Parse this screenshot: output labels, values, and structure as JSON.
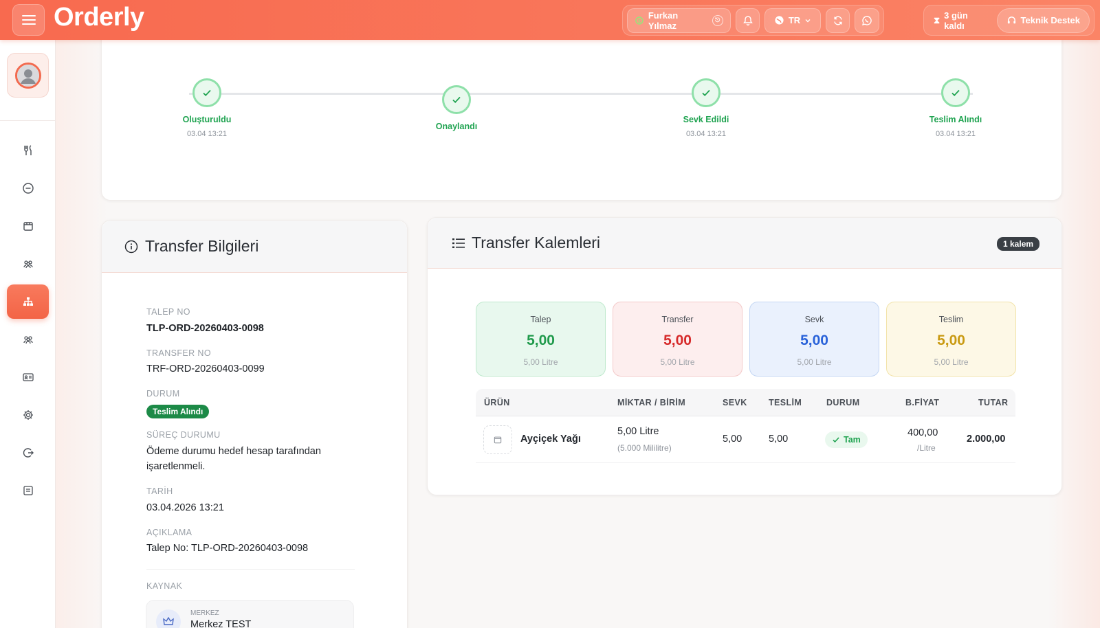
{
  "app": {
    "brand": "Orderly",
    "user_name": "Furkan Yılmaz",
    "language": "TR",
    "days_left": "3 gün kaldı",
    "support_label": "Teknik Destek"
  },
  "timeline": [
    {
      "label": "Oluşturuldu",
      "time": "03.04 13:21"
    },
    {
      "label": "Onaylandı",
      "time": ""
    },
    {
      "label": "Sevk Edildi",
      "time": "03.04 13:21"
    },
    {
      "label": "Teslim Alındı",
      "time": "03.04 13:21"
    }
  ],
  "transfer_info": {
    "title": "Transfer Bilgileri",
    "talep_no_label": "TALEP NO",
    "talep_no": "TLP-ORD-20260403-0098",
    "transfer_no_label": "TRANSFER NO",
    "transfer_no": "TRF-ORD-20260403-0099",
    "durum_label": "DURUM",
    "durum": "Teslim Alındı",
    "surec_label": "SÜREÇ DURUMU",
    "surec_line1": "Ödeme durumu hedef hesap tarafından",
    "surec_line2": "işaretlenmeli.",
    "tarih_label": "TARİH",
    "tarih": "03.04.2026 13:21",
    "aciklama_label": "AÇIKLAMA",
    "aciklama": "Talep No: TLP-ORD-20260403-0098",
    "kaynak_label": "KAYNAK",
    "kaynak_type": "MERKEZ",
    "kaynak_name": "Merkez TEST"
  },
  "items": {
    "title": "Transfer Kalemleri",
    "count_badge": "1 kalem",
    "stats": [
      {
        "title": "Talep",
        "value": "5,00",
        "sub": "5,00 Litre",
        "color": "#1f9a4b",
        "bg": "#e8f8ee",
        "border": "#bfe9cd"
      },
      {
        "title": "Transfer",
        "value": "5,00",
        "sub": "5,00 Litre",
        "color": "#d62a2a",
        "bg": "#fdeeee",
        "border": "#f3c9c9"
      },
      {
        "title": "Sevk",
        "value": "5,00",
        "sub": "5,00 Litre",
        "color": "#2962d9",
        "bg": "#eaf1fd",
        "border": "#c3d6f3"
      },
      {
        "title": "Teslim",
        "value": "5,00",
        "sub": "5,00 Litre",
        "color": "#c99a12",
        "bg": "#fdf8e6",
        "border": "#f2e3a9"
      }
    ],
    "columns": {
      "urun": "ÜRÜN",
      "miktar": "MİKTAR / BİRİM",
      "sevk": "SEVK",
      "teslim": "TESLİM",
      "durum": "DURUM",
      "bfiyat": "B.FİYAT",
      "tutar": "TUTAR"
    },
    "row": {
      "urun": "Ayçiçek Yağı",
      "miktar": "5,00 Litre",
      "miktar_sub": "(5.000 Mililitre)",
      "sevk": "5,00",
      "teslim": "5,00",
      "durum": "Tam",
      "bfiyat": "400,00",
      "bfiyat_unit": "/Litre",
      "tutar": "2.000,00"
    }
  },
  "colors": {
    "accent": "#f86a4f",
    "success": "#1fa350"
  }
}
